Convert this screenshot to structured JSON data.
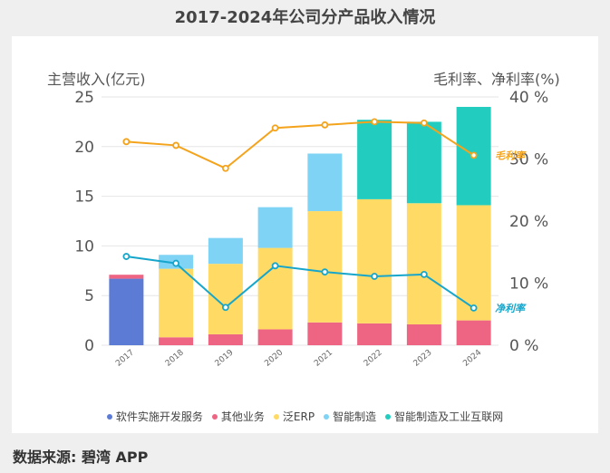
{
  "chart_data": {
    "type": "bar",
    "title": "2017-2024年公司分产品收入情况",
    "ylabel": "主营收入(亿元)",
    "y2label": "毛利率、净利率(%)",
    "ylim": [
      0,
      25
    ],
    "y2lim": [
      0,
      40
    ],
    "yticks": [
      "0",
      "5",
      "10",
      "15",
      "20",
      "25"
    ],
    "y2ticks": [
      "0 %",
      "10 %",
      "20 %",
      "30 %",
      "40 %"
    ],
    "grid": true,
    "legend_position": "bottom",
    "categories": [
      "2017",
      "2018",
      "2019",
      "2020",
      "2021",
      "2022",
      "2023",
      "2024"
    ],
    "series": [
      {
        "name": "软件实施开发服务",
        "type": "bar",
        "color": "#5b7bd5",
        "values": [
          6.7,
          0,
          0,
          0,
          0,
          0,
          0,
          0
        ]
      },
      {
        "name": "其他业务",
        "type": "bar",
        "color": "#ee6584",
        "values": [
          0.4,
          0.8,
          1.1,
          1.6,
          2.3,
          2.2,
          2.1,
          2.5
        ]
      },
      {
        "name": "泛ERP",
        "type": "bar",
        "color": "#ffdb66",
        "values": [
          0,
          6.9,
          7.1,
          8.2,
          11.2,
          12.5,
          12.2,
          11.6
        ]
      },
      {
        "name": "智能制造",
        "type": "bar",
        "color": "#7fd3f5",
        "values": [
          0,
          1.4,
          2.6,
          4.1,
          5.8,
          0,
          0,
          0
        ]
      },
      {
        "name": "智能制造及工业互联网",
        "type": "bar",
        "color": "#22cdbf",
        "values": [
          0,
          0,
          0,
          0,
          0,
          8.0,
          8.2,
          9.9
        ]
      },
      {
        "name": "毛利率",
        "type": "line",
        "axis": "right",
        "color": "#f4a31c",
        "values": [
          32.8,
          32.2,
          28.5,
          35.0,
          35.5,
          36.0,
          35.8,
          30.6
        ]
      },
      {
        "name": "净利率",
        "type": "line",
        "axis": "right",
        "color": "#17a6cb",
        "values": [
          14.3,
          13.2,
          6.1,
          12.8,
          11.8,
          11.1,
          11.4,
          6.0
        ]
      }
    ]
  },
  "source": "数据来源: 碧湾 APP"
}
